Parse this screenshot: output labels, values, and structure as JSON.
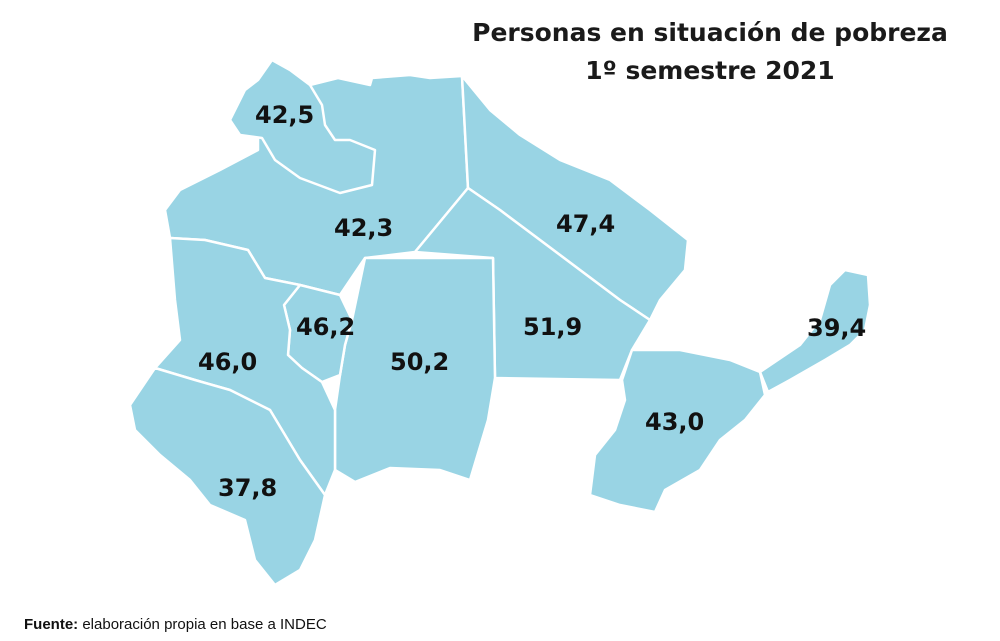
{
  "title": {
    "line1": "Personas en situación de pobreza",
    "line2": "1º semestre 2021"
  },
  "colors": {
    "region_fill": "#99d4e4",
    "border": "#ffffff",
    "text": "#111111"
  },
  "regions": [
    {
      "id": "r1",
      "value": "42,5"
    },
    {
      "id": "r2",
      "value": "42,3"
    },
    {
      "id": "r3",
      "value": "47,4"
    },
    {
      "id": "r4",
      "value": "46,2"
    },
    {
      "id": "r5",
      "value": "50,2"
    },
    {
      "id": "r6",
      "value": "51,9"
    },
    {
      "id": "r7",
      "value": "46,0"
    },
    {
      "id": "r8",
      "value": "39,4"
    },
    {
      "id": "r9",
      "value": "43,0"
    },
    {
      "id": "r10",
      "value": "37,8"
    }
  ],
  "source": {
    "label": "Fuente:",
    "text": "elaboración propia en base a INDEC"
  }
}
